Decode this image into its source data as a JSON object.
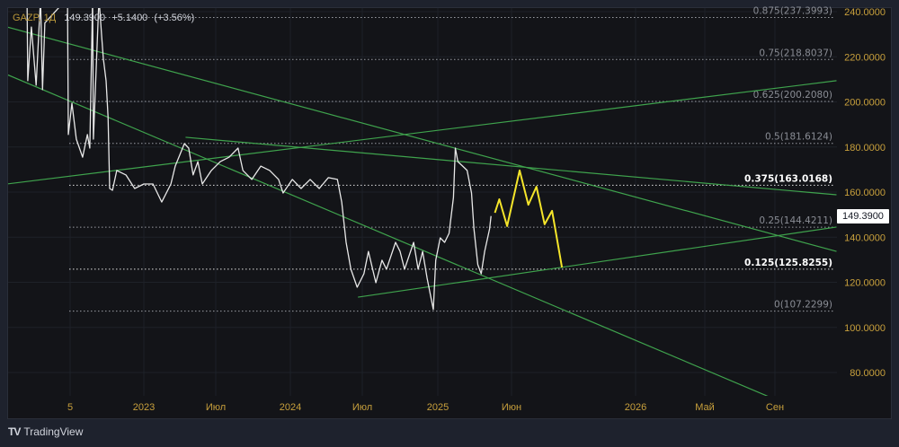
{
  "header": {
    "symbol": "GAZP, 1Д",
    "price": "149.3900",
    "change": "+5.1400",
    "change_pct": "(+3.56%)"
  },
  "last_price_label": "149.3900",
  "branding": {
    "name": "TradingView"
  },
  "colors": {
    "price": "#e8e8e8",
    "forecast": "#f5e52a",
    "trendline": "#3fa34d",
    "axis_text": "#c8a03c",
    "background": "#131418",
    "frame": "#1e222d"
  },
  "chart_data": {
    "type": "line",
    "y_axis": {
      "range": [
        70,
        245
      ],
      "ticks": [
        "240.0000",
        "220.0000",
        "200.0000",
        "180.0000",
        "160.0000",
        "140.0000",
        "120.0000",
        "100.0000",
        "80.0000"
      ],
      "position": "right"
    },
    "x_axis": {
      "ticks": [
        "5",
        "2023",
        "Июл",
        "2024",
        "Июл",
        "2025",
        "Июн",
        "2026",
        "Май",
        "Сен"
      ]
    },
    "grid": true,
    "series": [
      {
        "role": "price",
        "points": [
          [
            "2022-03-13",
            245
          ],
          [
            "2022-03-15",
            209.4
          ],
          [
            "2022-03-24",
            233.2
          ],
          [
            "2022-04-05",
            207.4
          ],
          [
            "2022-04-16",
            246
          ],
          [
            "2022-04-21",
            205.4
          ],
          [
            "2022-04-27",
            235
          ],
          [
            "2022-06-23",
            246
          ],
          [
            "2022-06-25",
            185.5
          ],
          [
            "2022-07-04",
            199.4
          ],
          [
            "2022-07-15",
            183.5
          ],
          [
            "2022-07-31",
            175.5
          ],
          [
            "2022-08-12",
            185.5
          ],
          [
            "2022-08-18",
            179.5
          ],
          [
            "2022-08-25",
            246
          ],
          [
            "2022-08-27",
            183.5
          ],
          [
            "2022-09-10",
            246
          ],
          [
            "2022-09-17",
            229
          ],
          [
            "2022-09-21",
            219.4
          ],
          [
            "2022-09-28",
            209.4
          ],
          [
            "2022-10-03",
            193.4
          ],
          [
            "2022-10-07",
            161.6
          ],
          [
            "2022-10-14",
            160.8
          ],
          [
            "2022-10-25",
            169.6
          ],
          [
            "2022-11-17",
            167.6
          ],
          [
            "2022-12-09",
            161.6
          ],
          [
            "2023-01-01",
            163.6
          ],
          [
            "2023-01-24",
            163.6
          ],
          [
            "2023-02-15",
            155.6
          ],
          [
            "2023-03-10",
            163.6
          ],
          [
            "2023-03-21",
            171.5
          ],
          [
            "2023-04-13",
            181.5
          ],
          [
            "2023-04-24",
            179.5
          ],
          [
            "2023-05-05",
            167.6
          ],
          [
            "2023-05-17",
            173.5
          ],
          [
            "2023-05-28",
            163.6
          ],
          [
            "2023-06-20",
            169.6
          ],
          [
            "2023-07-12",
            173.5
          ],
          [
            "2023-08-03",
            175.5
          ],
          [
            "2023-08-25",
            179.5
          ],
          [
            "2023-09-06",
            169.6
          ],
          [
            "2023-09-28",
            165.6
          ],
          [
            "2023-10-20",
            171.5
          ],
          [
            "2023-11-11",
            169.6
          ],
          [
            "2023-12-03",
            165.6
          ],
          [
            "2023-12-14",
            159.6
          ],
          [
            "2024-01-06",
            165.6
          ],
          [
            "2024-01-28",
            161.6
          ],
          [
            "2024-02-20",
            165.6
          ],
          [
            "2024-03-14",
            161.6
          ],
          [
            "2024-04-06",
            166.4
          ],
          [
            "2024-04-29",
            165.6
          ],
          [
            "2024-05-10",
            155.6
          ],
          [
            "2024-05-21",
            137.7
          ],
          [
            "2024-06-02",
            125.8
          ],
          [
            "2024-06-18",
            117.8
          ],
          [
            "2024-07-05",
            123.8
          ],
          [
            "2024-07-16",
            133.7
          ],
          [
            "2024-08-03",
            119.8
          ],
          [
            "2024-08-18",
            129.8
          ],
          [
            "2024-08-29",
            125.8
          ],
          [
            "2024-09-20",
            137.7
          ],
          [
            "2024-10-01",
            133.7
          ],
          [
            "2024-10-12",
            125.8
          ],
          [
            "2024-11-03",
            137.7
          ],
          [
            "2024-11-14",
            125.8
          ],
          [
            "2024-11-25",
            133.7
          ],
          [
            "2024-12-06",
            121.8
          ],
          [
            "2024-12-21",
            107.9
          ],
          [
            "2024-12-27",
            129.8
          ],
          [
            "2025-01-06",
            139.7
          ],
          [
            "2025-01-15",
            137.7
          ],
          [
            "2025-01-24",
            141.7
          ],
          [
            "2025-02-02",
            157.6
          ],
          [
            "2025-02-06",
            179.5
          ],
          [
            "2025-02-11",
            173.5
          ],
          [
            "2025-02-21",
            171.5
          ],
          [
            "2025-03-02",
            169.6
          ],
          [
            "2025-03-11",
            159.6
          ],
          [
            "2025-03-16",
            143.7
          ],
          [
            "2025-03-24",
            127.8
          ],
          [
            "2025-03-31",
            123.8
          ],
          [
            "2025-04-07",
            133.7
          ],
          [
            "2025-04-17",
            143.7
          ],
          [
            "2025-04-20",
            149.39
          ]
        ]
      },
      {
        "role": "forecast",
        "points": [
          [
            "2025-04-28",
            150.8
          ],
          [
            "2025-05-07",
            156.8
          ],
          [
            "2025-05-23",
            144.9
          ],
          [
            "2025-06-15",
            169.6
          ],
          [
            "2025-06-30",
            154.4
          ],
          [
            "2025-07-14",
            162.4
          ],
          [
            "2025-07-28",
            145.7
          ],
          [
            "2025-08-10",
            151.7
          ],
          [
            "2025-08-27",
            126.6
          ]
        ]
      }
    ],
    "trendlines": [
      {
        "from": [
          "2022-01-22",
          233.2
        ],
        "to": [
          "2026-12-18",
          133.7
        ]
      },
      {
        "from": [
          "2022-01-22",
          212.1
        ],
        "to": [
          "2026-08-21",
          69.3
        ]
      },
      {
        "from": [
          "2022-01-22",
          163.6
        ],
        "to": [
          "2026-12-18",
          209.4
        ]
      },
      {
        "from": [
          "2023-04-16",
          184.3
        ],
        "to": [
          "2026-12-18",
          158.8
        ]
      },
      {
        "from": [
          "2024-06-20",
          113.4
        ],
        "to": [
          "2026-12-18",
          144.5
        ]
      }
    ],
    "fib_levels": [
      {
        "label": "0.875(237.3993)",
        "value": 237.3993,
        "highlight": false
      },
      {
        "label": "0.75(218.8037)",
        "value": 218.8037,
        "highlight": false
      },
      {
        "label": "0.625(200.2080)",
        "value": 200.208,
        "highlight": false
      },
      {
        "label": "0.5(181.6124)",
        "value": 181.6124,
        "highlight": false
      },
      {
        "label": "0.375(163.0168)",
        "value": 163.0168,
        "highlight": true
      },
      {
        "label": "0.25(144.4211)",
        "value": 144.4211,
        "highlight": false
      },
      {
        "label": "0.125(125.8255)",
        "value": 125.8255,
        "highlight": true
      },
      {
        "label": "0(107.2299)",
        "value": 107.2299,
        "highlight": false
      }
    ]
  }
}
